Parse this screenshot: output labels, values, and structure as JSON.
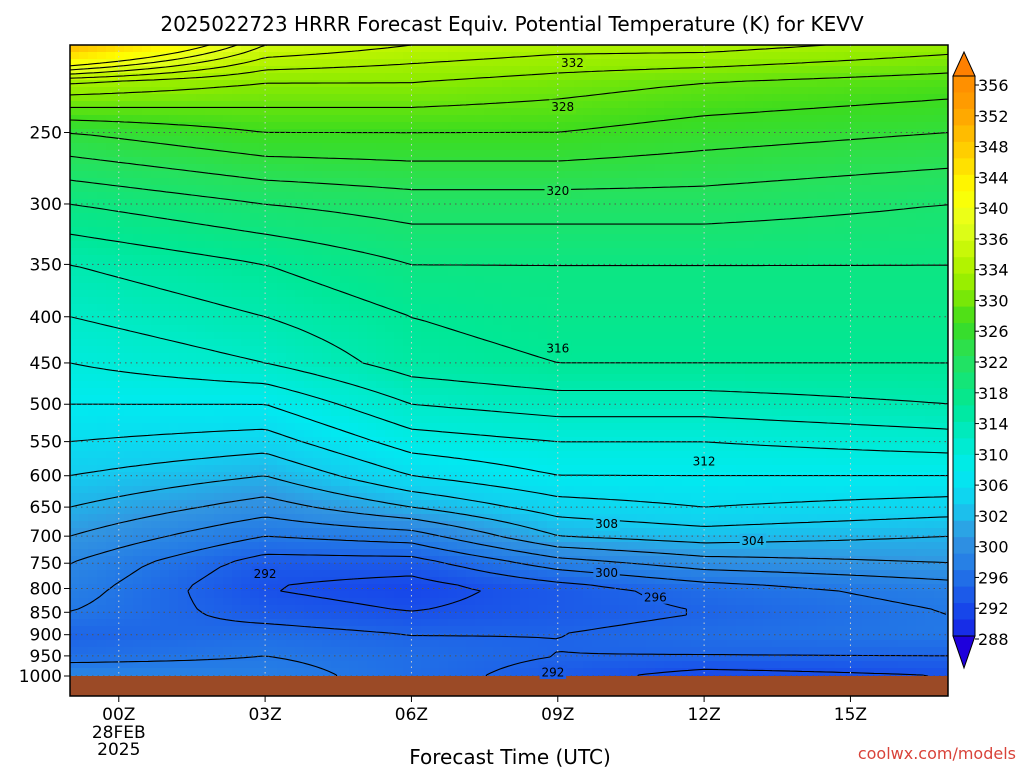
{
  "chart_data": {
    "type": "heatmap",
    "title": "2025022723 HRRR Forecast Equiv. Potential Temperature (K) for KEVV",
    "xlabel": "Forecast Time (UTC)",
    "ylabel": "",
    "x_ticks": [
      {
        "hour": 0,
        "label": "00Z",
        "sublabels": [
          "28FEB",
          "2025"
        ]
      },
      {
        "hour": 3,
        "label": "03Z"
      },
      {
        "hour": 6,
        "label": "06Z"
      },
      {
        "hour": 9,
        "label": "09Z"
      },
      {
        "hour": 12,
        "label": "12Z"
      },
      {
        "hour": 15,
        "label": "15Z"
      }
    ],
    "xlim": [
      -1,
      17
    ],
    "y_axis": "pressure (hPa), log scale, inverted",
    "y_ticks": [
      250,
      300,
      350,
      400,
      450,
      500,
      550,
      600,
      650,
      700,
      750,
      800,
      850,
      900,
      950,
      1000
    ],
    "ylim": [
      1000,
      200
    ],
    "grid": "dotted",
    "colorbar": {
      "levels": [
        288,
        290,
        292,
        294,
        296,
        298,
        300,
        302,
        304,
        306,
        308,
        310,
        312,
        314,
        316,
        318,
        320,
        322,
        324,
        326,
        328,
        330,
        332,
        334,
        336,
        338,
        340,
        342,
        344,
        346,
        348,
        350,
        352,
        354,
        356
      ],
      "labels": [
        "356",
        "352",
        "348",
        "344",
        "340",
        "336",
        "334",
        "330",
        "326",
        "322",
        "318",
        "314",
        "310",
        "306",
        "302",
        "300",
        "296",
        "292",
        "288"
      ],
      "extend": "both"
    },
    "profiles": [
      {
        "hour": -1,
        "pressure": [
          1000,
          950,
          900,
          850,
          800,
          750,
          700,
          650,
          600,
          550,
          500,
          450,
          400,
          350,
          300,
          250,
          220,
          200
        ],
        "theta_e": [
          298,
          295,
          294,
          296,
          297,
          298,
          300,
          302,
          304,
          306,
          308,
          310,
          312,
          314,
          318,
          324,
          332,
          350
        ]
      },
      {
        "hour": 3,
        "pressure": [
          1000,
          950,
          900,
          850,
          800,
          750,
          700,
          650,
          600,
          550,
          500,
          450,
          400,
          350,
          300,
          250,
          220,
          200
        ],
        "theta_e": [
          297,
          296,
          295,
          293,
          292,
          293,
          296,
          299,
          302,
          305,
          308,
          312,
          314,
          316,
          320,
          326,
          330,
          336
        ]
      },
      {
        "hour": 6,
        "pressure": [
          1000,
          950,
          900,
          850,
          800,
          750,
          700,
          650,
          600,
          550,
          500,
          450,
          400,
          350,
          300,
          250,
          220,
          200
        ],
        "theta_e": [
          295,
          295,
          294,
          292,
          291,
          293,
          297,
          302,
          306,
          309,
          312,
          315,
          316,
          318,
          321,
          326,
          330,
          334
        ]
      },
      {
        "hour": 9,
        "pressure": [
          1000,
          950,
          900,
          850,
          800,
          750,
          700,
          650,
          600,
          550,
          500,
          450,
          400,
          350,
          300,
          250,
          220,
          200
        ],
        "theta_e": [
          293,
          294,
          294,
          293,
          293,
          297,
          302,
          305,
          308,
          310,
          313,
          316,
          317,
          318,
          321,
          326,
          329,
          333
        ]
      },
      {
        "hour": 12,
        "pressure": [
          1000,
          950,
          900,
          850,
          800,
          750,
          700,
          650,
          600,
          550,
          500,
          450,
          400,
          350,
          300,
          250,
          220,
          200
        ],
        "theta_e": [
          291,
          294,
          295,
          294,
          295,
          299,
          303,
          306,
          308,
          310,
          313,
          316,
          317,
          318,
          321,
          325,
          328,
          333
        ]
      },
      {
        "hour": 17,
        "pressure": [
          1000,
          950,
          900,
          850,
          800,
          750,
          700,
          650,
          600,
          550,
          500,
          450,
          400,
          350,
          300,
          250,
          220,
          200
        ],
        "theta_e": [
          292,
          294,
          296,
          296,
          297,
          300,
          302,
          305,
          308,
          311,
          314,
          316,
          317,
          318,
          320,
          324,
          327,
          331
        ]
      }
    ],
    "contour_labels": [
      {
        "value": "332",
        "hour": 9.3,
        "pressure": 209
      },
      {
        "value": "328",
        "hour": 9.1,
        "pressure": 234
      },
      {
        "value": "320",
        "hour": 9.0,
        "pressure": 290
      },
      {
        "value": "316",
        "hour": 9.0,
        "pressure": 433
      },
      {
        "value": "312",
        "hour": 12.0,
        "pressure": 578
      },
      {
        "value": "308",
        "hour": 10.0,
        "pressure": 678
      },
      {
        "value": "304",
        "hour": 13.0,
        "pressure": 708
      },
      {
        "value": "300",
        "hour": 10.0,
        "pressure": 768
      },
      {
        "value": "296",
        "hour": 11.0,
        "pressure": 817
      },
      {
        "value": "292",
        "hour": 3.0,
        "pressure": 770
      },
      {
        "value": "292",
        "hour": 8.9,
        "pressure": 990
      }
    ],
    "surface_color": "#9b4a26"
  },
  "credit": "coolwx.com/models"
}
